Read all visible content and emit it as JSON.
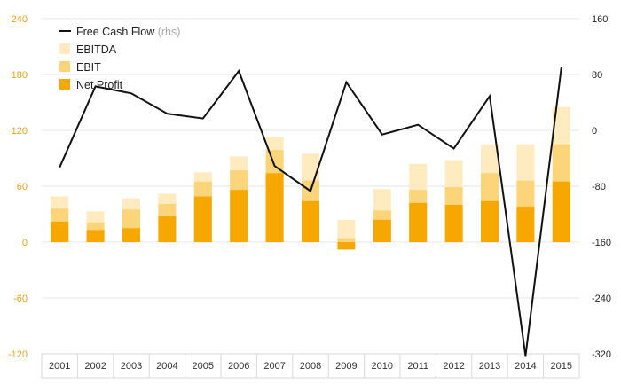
{
  "chart_data": {
    "type": "bar",
    "categories": [
      "2001",
      "2002",
      "2003",
      "2004",
      "2005",
      "2006",
      "2007",
      "2008",
      "2009",
      "2010",
      "2011",
      "2012",
      "2013",
      "2014",
      "2015"
    ],
    "series": [
      {
        "name": "Net Profit",
        "kind": "bar",
        "axis": "left",
        "color": "#f7a800",
        "values": [
          22,
          13,
          15,
          28,
          49,
          56,
          74,
          44,
          -8,
          24,
          42,
          40,
          44,
          38,
          65
        ]
      },
      {
        "name": "EBIT",
        "kind": "bar",
        "axis": "left",
        "color": "#fcd57a",
        "values": [
          36,
          21,
          35,
          41,
          65,
          77,
          99,
          66,
          4,
          34,
          56,
          59,
          74,
          66,
          105
        ]
      },
      {
        "name": "EBITDA",
        "kind": "bar",
        "axis": "left",
        "color": "#ffebbf",
        "values": [
          49,
          33,
          47,
          52,
          75,
          92,
          113,
          95,
          24,
          57,
          84,
          88,
          105,
          105,
          145
        ]
      },
      {
        "name": "Free Cash Flow",
        "note": "(rhs)",
        "kind": "line",
        "axis": "right",
        "color": "#111111",
        "values": [
          -53,
          63,
          53,
          24,
          17,
          85,
          -51,
          -87,
          69,
          -6,
          8,
          -26,
          49,
          -323,
          90
        ]
      }
    ],
    "y_left": {
      "ticks": [
        240,
        180,
        120,
        60,
        0,
        -60,
        -120
      ],
      "range": [
        -120,
        240
      ],
      "color": "#e8a317"
    },
    "y_right": {
      "ticks": [
        160,
        80,
        0,
        -80,
        -160,
        -240,
        -320
      ],
      "range": [
        -320,
        160
      ],
      "color": "#222222"
    },
    "grid": true,
    "legend_placement": "top-left"
  }
}
